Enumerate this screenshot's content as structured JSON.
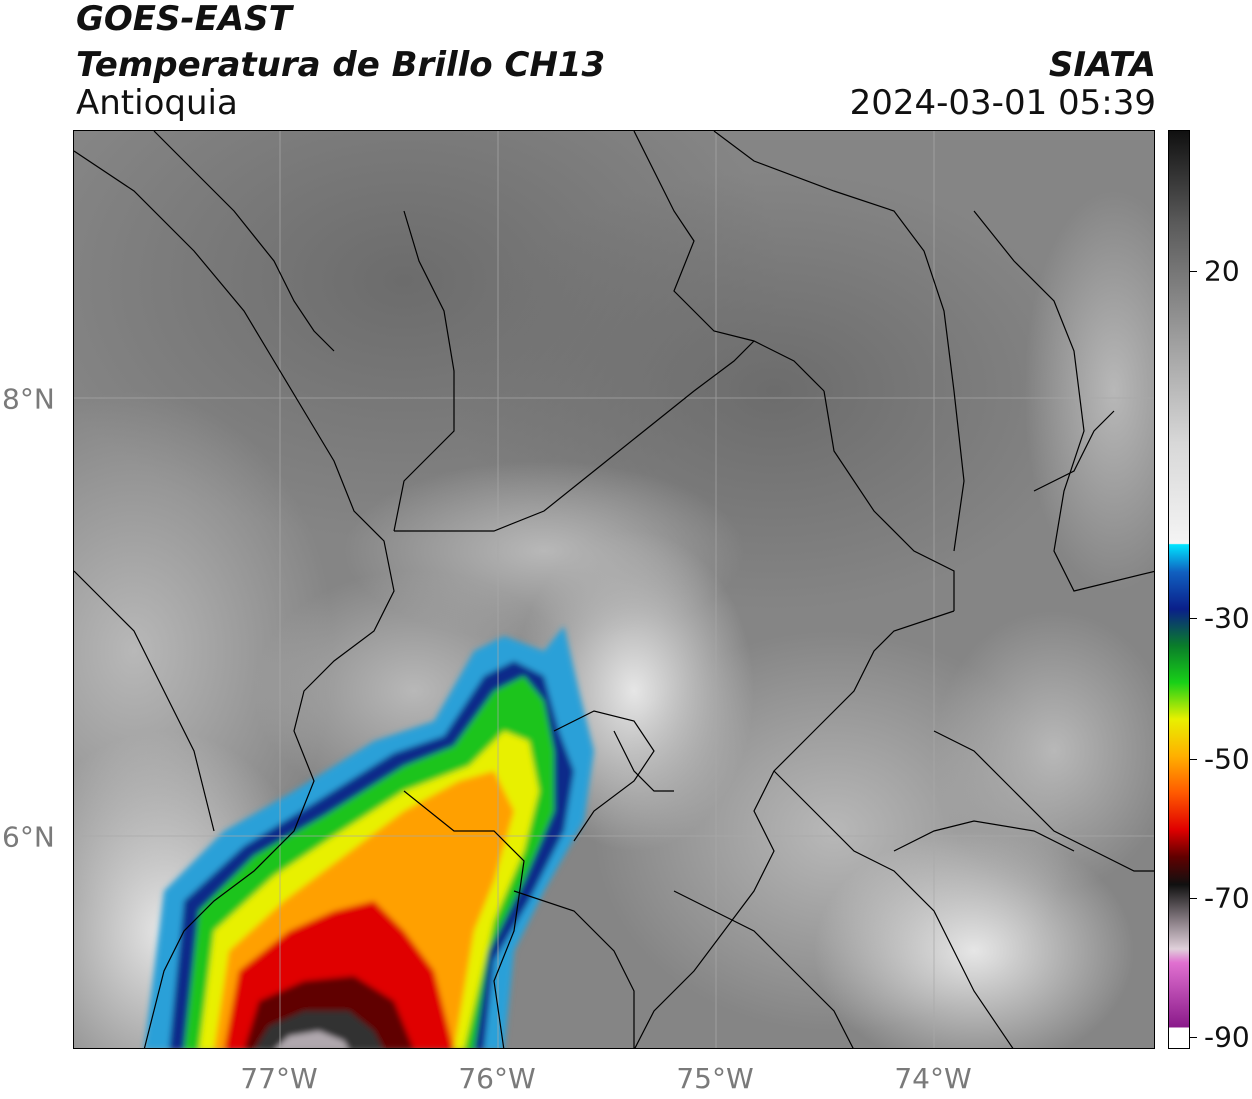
{
  "header": {
    "satellite": "GOES-EAST",
    "product": "Temperatura de Brillo CH13",
    "region": "Antioquia",
    "agency": "SIATA",
    "datetime": "2024-03-01 05:39"
  },
  "map": {
    "lon_labels": [
      "77°W",
      "76°W",
      "75°W",
      "74°W"
    ],
    "lat_labels": [
      "8°N",
      "6°N"
    ],
    "colors": {
      "background_gray": "#7e7e7e",
      "warm_gray": "#8a8a8a",
      "border": "#000000"
    }
  },
  "colorbar": {
    "labels": [
      "20",
      "-30",
      "-50",
      "-70",
      "-90"
    ],
    "stops": [
      {
        "color": "#101010"
      },
      {
        "color": "#5a5a5a"
      },
      {
        "color": "#9a9a9a"
      },
      {
        "color": "#d8d8d8"
      },
      {
        "color": "#f4f4f4"
      },
      {
        "color": "#00e5ff"
      },
      {
        "color": "#1060c0"
      },
      {
        "color": "#0a1f8a"
      },
      {
        "color": "#0a7d2a"
      },
      {
        "color": "#18d018"
      },
      {
        "color": "#e8f000"
      },
      {
        "color": "#ffb000"
      },
      {
        "color": "#ff5a00"
      },
      {
        "color": "#e00000"
      },
      {
        "color": "#600000"
      },
      {
        "color": "#101010"
      },
      {
        "color": "#8a7f86"
      },
      {
        "color": "#e0d0da"
      },
      {
        "color": "#e070d0"
      },
      {
        "color": "#8a1a8a"
      },
      {
        "color": "#ffffff"
      }
    ]
  }
}
